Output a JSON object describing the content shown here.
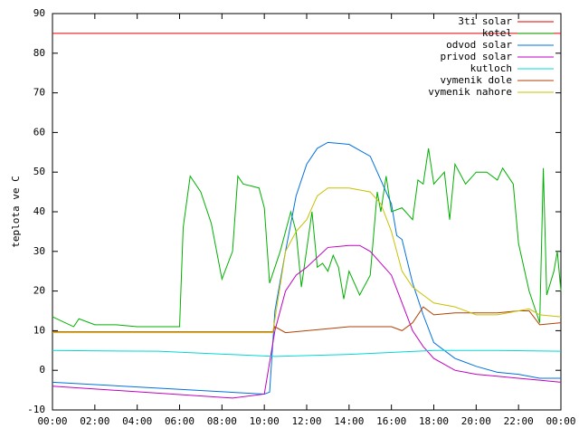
{
  "chart_data": {
    "type": "line",
    "ylabel": "teplota ve C",
    "xlim": [
      0,
      24
    ],
    "ylim": [
      -10,
      90
    ],
    "xticks": [
      {
        "value": 0,
        "label": "00:00"
      },
      {
        "value": 2,
        "label": "02:00"
      },
      {
        "value": 4,
        "label": "04:00"
      },
      {
        "value": 6,
        "label": "06:00"
      },
      {
        "value": 8,
        "label": "08:00"
      },
      {
        "value": 10,
        "label": "10:00"
      },
      {
        "value": 12,
        "label": "12:00"
      },
      {
        "value": 14,
        "label": "14:00"
      },
      {
        "value": 16,
        "label": "16:00"
      },
      {
        "value": 18,
        "label": "18:00"
      },
      {
        "value": 20,
        "label": "20:00"
      },
      {
        "value": 22,
        "label": "22:00"
      },
      {
        "value": 24,
        "label": "00:00"
      }
    ],
    "yticks": [
      -10,
      0,
      10,
      20,
      30,
      40,
      50,
      60,
      70,
      80,
      90
    ],
    "series": [
      {
        "name": "3ti solar",
        "color": "#e00000",
        "x": [
          0,
          24
        ],
        "values": [
          85,
          85
        ]
      },
      {
        "name": "kotel",
        "color": "#00b000",
        "x": [
          0,
          1,
          1.25,
          2,
          3,
          4,
          5,
          6,
          6.17,
          6.5,
          7,
          7.5,
          8,
          8.5,
          8.75,
          9,
          9.75,
          10,
          10.25,
          10.75,
          11.25,
          11.5,
          11.75,
          12.25,
          12.5,
          12.75,
          13,
          13.25,
          13.5,
          13.75,
          14,
          14.5,
          15,
          15.33,
          15.5,
          15.75,
          16,
          16.5,
          17,
          17.25,
          17.5,
          17.75,
          18,
          18.5,
          18.75,
          19,
          19.5,
          20,
          20.5,
          21,
          21.25,
          21.75,
          22,
          22.5,
          23,
          23.17,
          23.33,
          23.67,
          23.83,
          24
        ],
        "values": [
          13.5,
          11,
          13,
          11.5,
          11.5,
          11,
          11,
          11,
          36,
          49,
          45,
          37,
          23,
          30,
          49,
          47,
          46,
          41,
          22,
          30,
          40,
          35,
          21,
          40,
          26,
          27,
          25,
          29,
          26,
          18,
          25,
          19,
          24,
          45,
          40,
          49,
          40,
          41,
          38,
          48,
          47,
          56,
          47,
          50,
          38,
          52,
          47,
          50,
          50,
          48,
          51,
          47,
          32,
          20,
          12,
          51,
          19,
          25,
          30,
          20
        ]
      },
      {
        "name": "odvod solar",
        "color": "#0070e0",
        "x": [
          0,
          10,
          10.25,
          10.5,
          11,
          11.5,
          12,
          12.5,
          13,
          14,
          15,
          16,
          16.25,
          16.5,
          17,
          17.5,
          18,
          19,
          20,
          21,
          22,
          23,
          24
        ],
        "values": [
          -3,
          -6,
          -5.5,
          15,
          30,
          44,
          52,
          56,
          57.5,
          57,
          54,
          42,
          34,
          33,
          22,
          14,
          7,
          3,
          1,
          -0.5,
          -1,
          -2,
          -2
        ]
      },
      {
        "name": "privod solar",
        "color": "#c000c0",
        "x": [
          0,
          8.5,
          10,
          10.5,
          11,
          11.5,
          12,
          13,
          14,
          14.5,
          15,
          16,
          16.5,
          17,
          17.5,
          18,
          19,
          20,
          21,
          22,
          23,
          24
        ],
        "values": [
          -4,
          -7,
          -6,
          10,
          20,
          24,
          26,
          31,
          31.5,
          31.5,
          30,
          24,
          17,
          10,
          6,
          3,
          0,
          -1,
          -1.5,
          -2,
          -2.5,
          -3
        ]
      },
      {
        "name": "kutloch",
        "color": "#00d8d8",
        "x": [
          0,
          5,
          10.5,
          14,
          18,
          21,
          24
        ],
        "values": [
          5,
          4.8,
          3.5,
          4,
          5,
          5,
          4.8
        ]
      },
      {
        "name": "vymenik dole",
        "color": "#b04000",
        "x": [
          0,
          10.4,
          10.5,
          11,
          13,
          14,
          16,
          16.5,
          17,
          17.5,
          18,
          19,
          21,
          22,
          22.5,
          23,
          24
        ],
        "values": [
          9.7,
          9.7,
          11,
          9.5,
          10.5,
          11,
          11,
          10,
          12,
          16,
          14,
          14.5,
          14.5,
          15,
          15,
          11.5,
          12
        ]
      },
      {
        "name": "vymenik nahore",
        "color": "#c8c000",
        "x": [
          0,
          10.4,
          11,
          11.5,
          12,
          12.5,
          13,
          14,
          15,
          15.5,
          16,
          16.5,
          17,
          17.5,
          18,
          19,
          20,
          21,
          22,
          22.5,
          23,
          24
        ],
        "values": [
          9.5,
          9.5,
          30,
          35,
          38,
          44,
          46,
          46,
          45,
          42,
          35,
          25,
          21,
          19,
          17,
          16,
          14,
          14,
          15,
          15.5,
          14,
          13.5
        ]
      }
    ]
  }
}
